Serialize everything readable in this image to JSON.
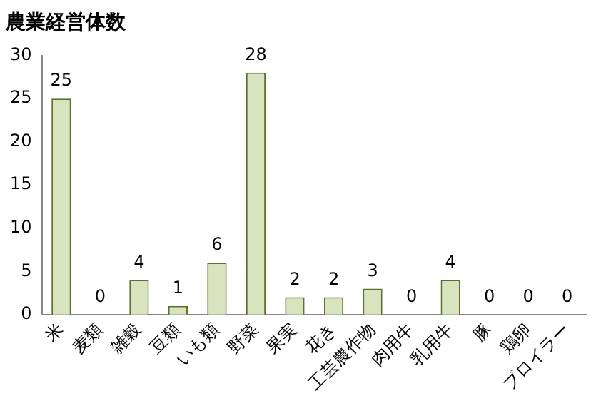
{
  "chart_data": {
    "type": "bar",
    "title": "農業経営体数",
    "categories": [
      "米",
      "麦類",
      "雑穀",
      "豆類",
      "いも類",
      "野菜",
      "果実",
      "花き",
      "工芸農作物",
      "肉用牛",
      "乳用牛",
      "豚",
      "鶏卵",
      "ブロイラー"
    ],
    "values": [
      25,
      0,
      4,
      1,
      6,
      28,
      2,
      2,
      3,
      0,
      4,
      0,
      0,
      0
    ],
    "color": "#d7e4bd",
    "ylim": [
      0,
      30
    ],
    "yticks": [
      0,
      5,
      10,
      15,
      20,
      25,
      30
    ],
    "grid": false,
    "legend": false,
    "data_labels": true
  }
}
